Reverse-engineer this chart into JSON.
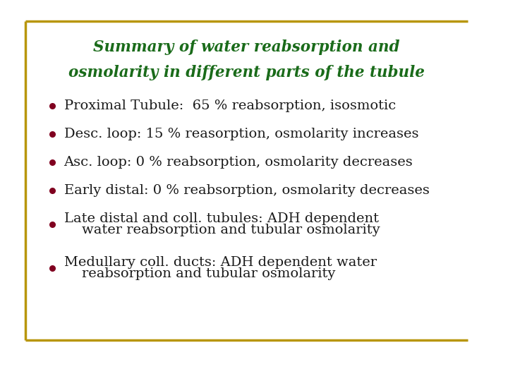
{
  "title_line1": "Summary of water reabsorption and",
  "title_line2": "osmolarity in different parts of the tubule",
  "title_color": "#1a6b1a",
  "bullet_color": "#800020",
  "text_color": "#1a1a1a",
  "background_color": "#ffffff",
  "border_color": "#b8960c",
  "bullets": [
    {
      "lines": [
        "Proximal Tubule:  65 % reabsorption, isosmotic"
      ]
    },
    {
      "lines": [
        "Desc. loop: 15 % reasorption, osmolarity increases"
      ]
    },
    {
      "lines": [
        "Asc. loop: 0 % reabsorption, osmolarity decreases"
      ]
    },
    {
      "lines": [
        "Early distal: 0 % reabsorption, osmolarity decreases"
      ]
    },
    {
      "lines": [
        "Late distal and coll. tubules: ADH dependent",
        "    water reabsorption and tubular osmolarity"
      ]
    },
    {
      "lines": [
        "Medullary coll. ducts: ADH dependent water",
        "    reabsorption and tubular osmolarity"
      ]
    }
  ],
  "font_family": "serif",
  "title_fontsize": 15.5,
  "bullet_fontsize": 14.0,
  "figsize": [
    7.2,
    5.4
  ],
  "dpi": 100
}
